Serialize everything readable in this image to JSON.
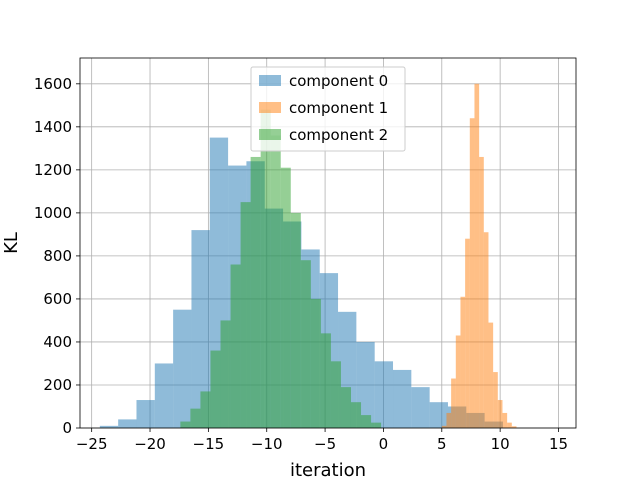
{
  "chart_data": {
    "type": "histogram",
    "xlabel": "iteration",
    "ylabel": "KL",
    "xlim": [
      -26,
      16.5
    ],
    "ylim": [
      0,
      1720
    ],
    "xticks": [
      -25,
      -20,
      -15,
      -10,
      -5,
      0,
      5,
      10,
      15
    ],
    "yticks": [
      0,
      200,
      400,
      600,
      800,
      1000,
      1200,
      1400,
      1600
    ],
    "grid": true,
    "legend_position": "top-center",
    "series": [
      {
        "name": "component 0",
        "color": "#1f77b4",
        "alpha": 0.5,
        "bin_start": -24.3,
        "bin_width": 1.57,
        "values": [
          10,
          40,
          130,
          300,
          550,
          920,
          1350,
          1220,
          1240,
          1020,
          960,
          830,
          720,
          540,
          400,
          310,
          270,
          190,
          120,
          100,
          70,
          30
        ]
      },
      {
        "name": "component 1",
        "color": "#ff7f0e",
        "alpha": 0.5,
        "bin_start": 5.0,
        "bin_width": 0.4,
        "values": [
          10,
          70,
          230,
          430,
          610,
          880,
          1440,
          1600,
          1260,
          910,
          490,
          260,
          130,
          70,
          25,
          8
        ]
      },
      {
        "name": "component 2",
        "color": "#2ca02c",
        "alpha": 0.5,
        "bin_start": -17.4,
        "bin_width": 0.86,
        "values": [
          30,
          90,
          170,
          360,
          500,
          760,
          1050,
          1260,
          1480,
          1360,
          1210,
          1000,
          780,
          600,
          440,
          310,
          190,
          120,
          60,
          25
        ]
      }
    ]
  }
}
